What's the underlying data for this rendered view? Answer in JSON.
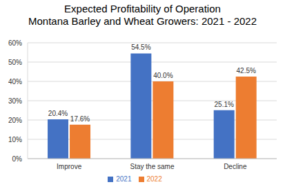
{
  "chart_data": {
    "type": "bar",
    "title": "Expected Profitability of Operation",
    "subtitle": "Montana Barley and Wheat Growers: 2021 - 2022",
    "categories": [
      "Improve",
      "Stay the same",
      "Decline"
    ],
    "series": [
      {
        "name": "2021",
        "color": "#4472c4",
        "values": [
          20.4,
          54.5,
          25.1
        ],
        "value_labels": [
          "20.4%",
          "54.5%",
          "25.1%"
        ]
      },
      {
        "name": "2022",
        "color": "#ed7d31",
        "values": [
          17.6,
          40.0,
          42.5
        ],
        "value_labels": [
          "17.6%",
          "40.0%",
          "42.5%"
        ]
      }
    ],
    "ylim": [
      0,
      60
    ],
    "yticks": [
      {
        "value": 0,
        "label": "0%"
      },
      {
        "value": 10,
        "label": "10%"
      },
      {
        "value": 20,
        "label": "20%"
      },
      {
        "value": 30,
        "label": "30%"
      },
      {
        "value": 40,
        "label": "40%"
      },
      {
        "value": 50,
        "label": "50%"
      },
      {
        "value": 60,
        "label": "60%"
      }
    ],
    "grid": true,
    "legend": "bottom",
    "data_labels": true
  }
}
